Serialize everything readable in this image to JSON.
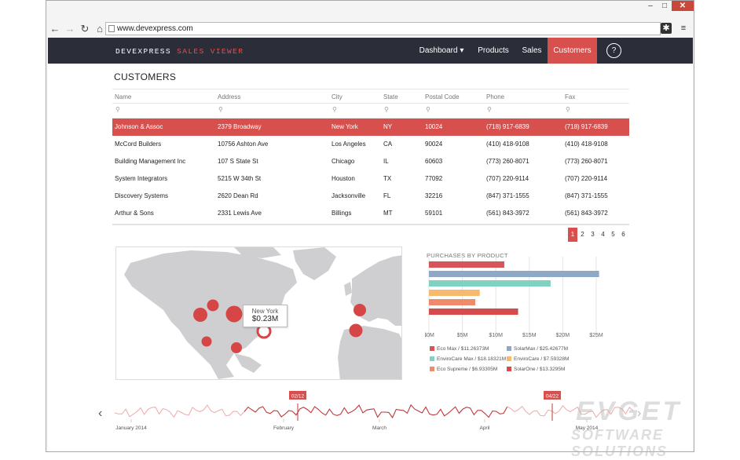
{
  "browser": {
    "url": "www.devexpress.com",
    "window_controls": [
      "minimize-icon",
      "maximize-icon",
      "close-icon"
    ]
  },
  "app": {
    "brand_main": "DEVEXPRESS",
    "brand_accent": "SALES VIEWER",
    "nav": [
      {
        "label": "Dashboard ▾",
        "active": false
      },
      {
        "label": "Products",
        "active": false
      },
      {
        "label": "Sales",
        "active": false
      },
      {
        "label": "Customers",
        "active": true
      }
    ],
    "help_label": "?"
  },
  "page": {
    "title": "CUSTOMERS"
  },
  "grid": {
    "columns": [
      "Name",
      "Address",
      "City",
      "State",
      "Postal Code",
      "Phone",
      "Fax"
    ],
    "rows": [
      [
        "Johnson & Assoc",
        "2379 Broadway",
        "New York",
        "NY",
        "10024",
        "(718) 917-6839",
        "(718) 917-6839"
      ],
      [
        "McCord Builders",
        "10756 Ashton Ave",
        "Los Angeles",
        "CA",
        "90024",
        "(410) 418-9108",
        "(410) 418-9108"
      ],
      [
        "Building Management Inc",
        "107 S State St",
        "Chicago",
        "IL",
        "60603",
        "(773) 260-8071",
        "(773) 260-8071"
      ],
      [
        "System Integrators",
        "5215 W 34th St",
        "Houston",
        "TX",
        "77092",
        "(707) 220-9114",
        "(707) 220-9114"
      ],
      [
        "Discovery Systems",
        "2620 Dean Rd",
        "Jacksonville",
        "FL",
        "32216",
        "(847) 371-1555",
        "(847) 371-1555"
      ],
      [
        "Arthur & Sons",
        "2331 Lewis Ave",
        "Billings",
        "MT",
        "59101",
        "(561) 843-3972",
        "(561) 843-3972"
      ]
    ],
    "selected_row": 0
  },
  "pager": {
    "pages": [
      "1",
      "2",
      "3",
      "4",
      "5",
      "6"
    ],
    "current": "1"
  },
  "map": {
    "tooltip_city": "New York",
    "tooltip_value": "$0.23M",
    "marker_color": "#d64646"
  },
  "chart_data": [
    {
      "type": "bar",
      "title": "PURCHASES BY PRODUCT",
      "orientation": "horizontal",
      "categories": [
        "Eco Max",
        "SolarMax",
        "EnviroCare Max",
        "EnviroCare",
        "Eco Supreme",
        "SolarOne"
      ],
      "values": [
        11.26373,
        25.42677,
        18.18321,
        7.59328,
        6.93305,
        13.3295
      ],
      "colors": [
        "#d95459",
        "#8fa8c8",
        "#7fd1c1",
        "#f6b96e",
        "#ef8a6a",
        "#d64b4b"
      ],
      "xlim": [
        0,
        27
      ],
      "x_ticks": [
        "$0M",
        "$5M",
        "$10M",
        "$15M",
        "$20M",
        "$25M"
      ],
      "legend": [
        {
          "label": "Eco Max / $11.26373M",
          "color": "#d95459"
        },
        {
          "label": "EnviroCare Max / $18.18321M",
          "color": "#7fd1c1"
        },
        {
          "label": "Eco Supreme / $6.93305M",
          "color": "#ef8a6a"
        },
        {
          "label": "SolarMax / $25.42677M",
          "color": "#8fa8c8"
        },
        {
          "label": "EnviroCare / $7.59328M",
          "color": "#f6b96e"
        },
        {
          "label": "SolarOne / $13.3295M",
          "color": "#d64b4b"
        }
      ]
    },
    {
      "type": "line",
      "title": "",
      "x_ticks": [
        "January 2014",
        "February",
        "March",
        "April",
        "May 2014"
      ],
      "range_labels": [
        "02/12",
        "04/22"
      ],
      "color": "#c0393b"
    }
  ],
  "watermark": {
    "line1": "EVGET",
    "line2": "SOFTWARE SOLUTIONS"
  }
}
